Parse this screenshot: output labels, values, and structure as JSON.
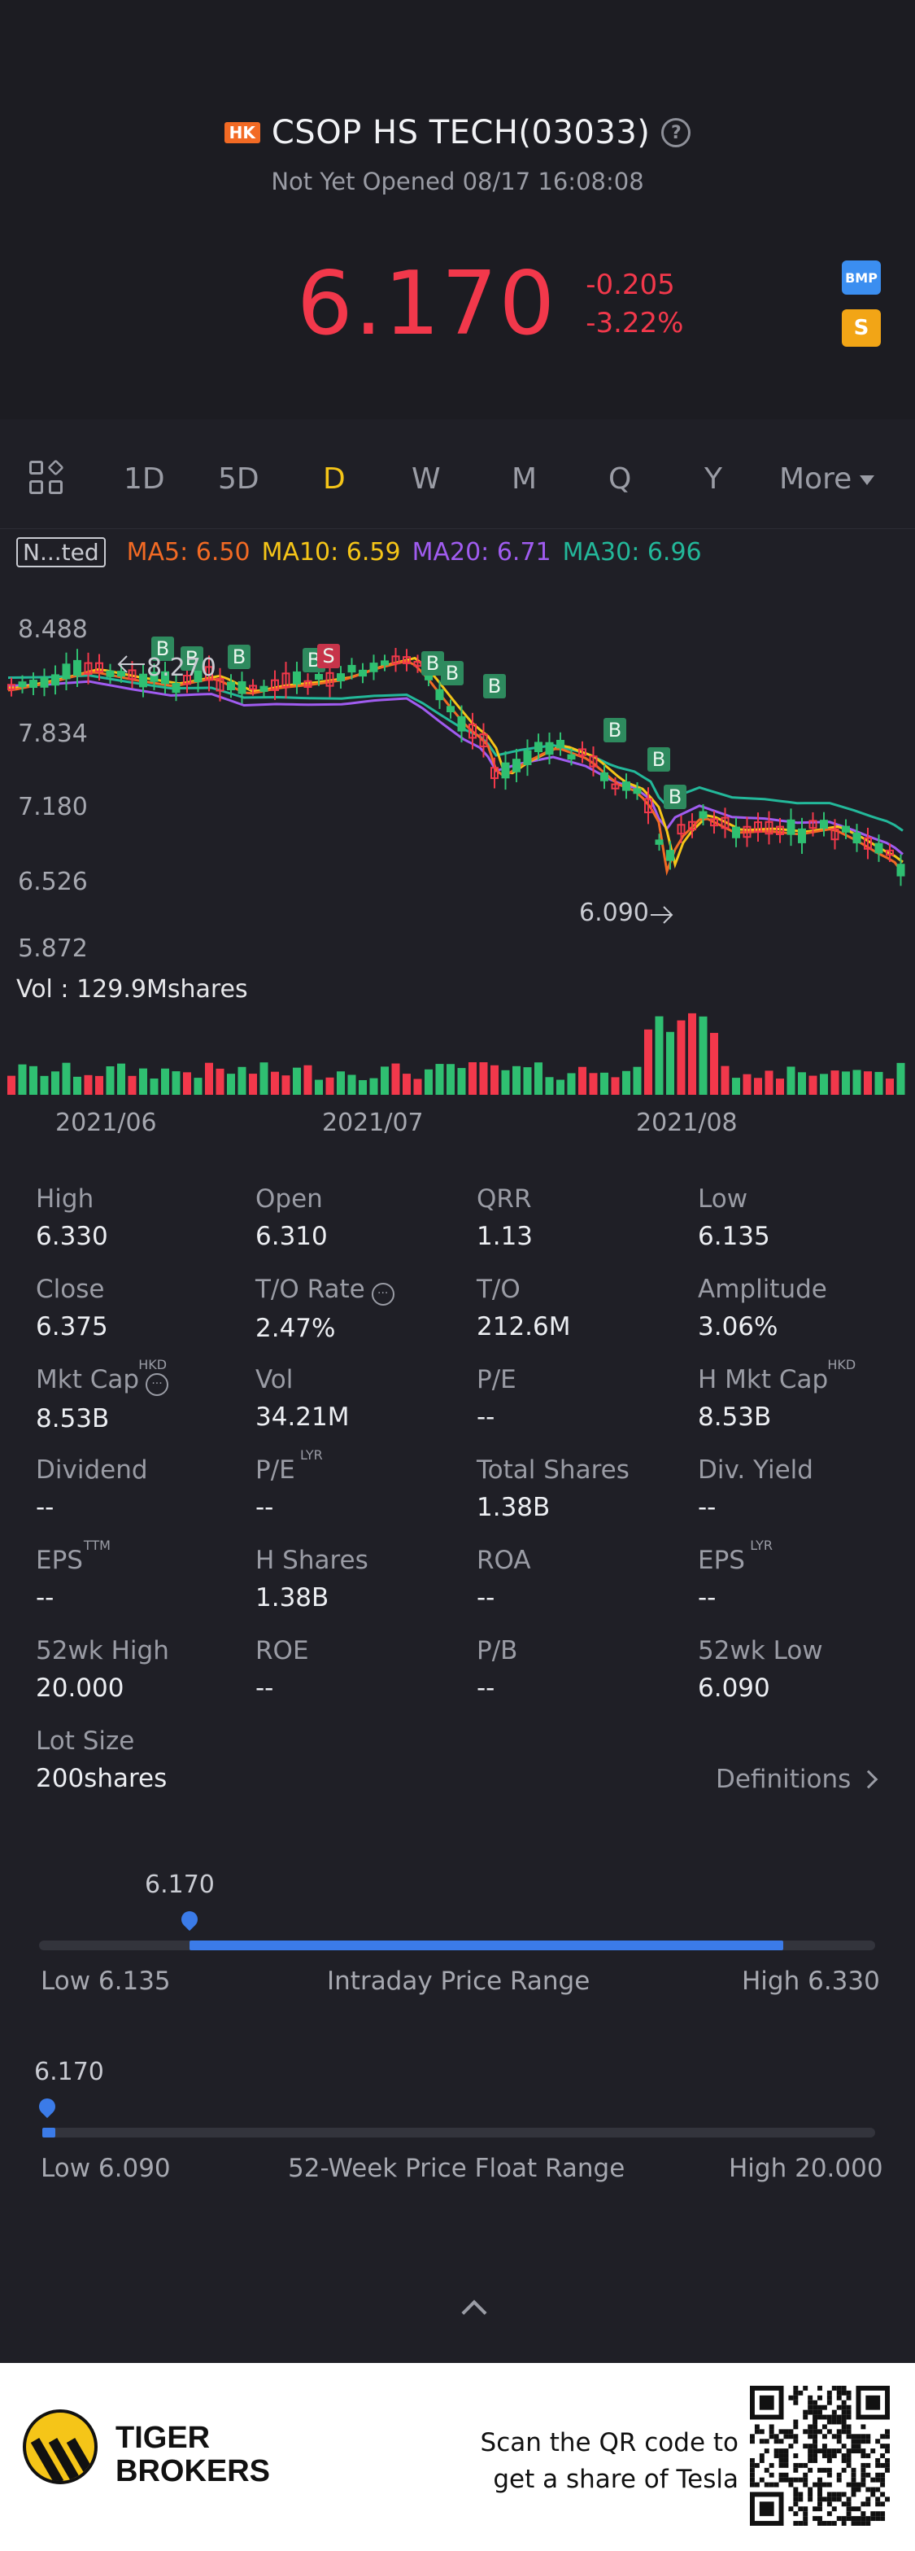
{
  "header": {
    "market_badge": "HK",
    "title": "CSOP HS TECH(03033)",
    "status": "Not Yet Opened 08/17 16:08:08",
    "price": "6.170",
    "change": "-0.205",
    "change_pct": "-3.22%",
    "badge_bmp": "BMP",
    "badge_s": "S"
  },
  "tabs": [
    "1D",
    "5D",
    "D",
    "W",
    "M",
    "Q",
    "Y"
  ],
  "active_tab": "D",
  "more_label": "More",
  "ma": {
    "toggle": "N...ted",
    "ma5": "MA5: 6.50",
    "ma10": "MA10: 6.59",
    "ma20": "MA20: 6.71",
    "ma30": "MA30: 6.96"
  },
  "colors": {
    "ma5": "#f26a24",
    "ma10": "#f5c518",
    "ma20": "#a05cf0",
    "ma30": "#23b89a",
    "up": "#f2384b",
    "down": "#2fbf71",
    "accent": "#3b7be8"
  },
  "chart_data": {
    "type": "candlestick",
    "y_ticks": [
      "8.488",
      "7.834",
      "7.180",
      "6.526",
      "5.872"
    ],
    "x_ticks": [
      "2021/06",
      "2021/07",
      "2021/08"
    ],
    "max_label": "8.270",
    "min_label": "6.090",
    "vol_label": "Vol  : 129.9Mshares",
    "trade_marks": [
      "B",
      "B",
      "B",
      "B",
      "S",
      "B",
      "B",
      "B",
      "B",
      "B",
      "B"
    ]
  },
  "stats": [
    {
      "label": "High",
      "value": "6.330"
    },
    {
      "label": "Open",
      "value": "6.310"
    },
    {
      "label": "QRR",
      "value": "1.13"
    },
    {
      "label": "Low",
      "value": "6.135"
    },
    {
      "label": "Close",
      "value": "6.375"
    },
    {
      "label": "T/O Rate",
      "value": "2.47%"
    },
    {
      "label": "T/O",
      "value": "212.6M"
    },
    {
      "label": "Amplitude",
      "value": "3.06%"
    },
    {
      "label": "Mkt Cap",
      "value": "8.53B",
      "sup": "HKD"
    },
    {
      "label": "Vol",
      "value": "34.21M"
    },
    {
      "label": "P/E",
      "value": "--"
    },
    {
      "label": "H Mkt Cap",
      "value": "8.53B",
      "sup": "HKD"
    },
    {
      "label": "Dividend",
      "value": "--"
    },
    {
      "label": "P/E",
      "value": "--",
      "sup": "LYR"
    },
    {
      "label": "Total Shares",
      "value": "1.38B"
    },
    {
      "label": "Div. Yield",
      "value": "--"
    },
    {
      "label": "EPS",
      "value": "--",
      "sup": "TTM"
    },
    {
      "label": "H Shares",
      "value": "1.38B"
    },
    {
      "label": "ROA",
      "value": "--"
    },
    {
      "label": "EPS",
      "value": "--",
      "sup": "LYR"
    },
    {
      "label": "52wk High",
      "value": "20.000"
    },
    {
      "label": "ROE",
      "value": "--"
    },
    {
      "label": "P/B",
      "value": "--"
    },
    {
      "label": "52wk Low",
      "value": "6.090"
    },
    {
      "label": "Lot Size",
      "value": "200shares"
    }
  ],
  "definitions": "Definitions",
  "intraday": {
    "current": "6.170",
    "low": "Low 6.135",
    "title": "Intraday Price Range",
    "high": "High 6.330",
    "position": 0.18,
    "fill_end": 0.89
  },
  "week52": {
    "current": "6.170",
    "low": "Low 6.090",
    "title": "52-Week Price Float Range",
    "high": "High 20.000",
    "position": 0.006
  },
  "footer": {
    "brand_line1": "TIGER",
    "brand_line2": "BROKERS",
    "scan_line1": "Scan the QR code to",
    "scan_line2": "get a share of Tesla"
  }
}
